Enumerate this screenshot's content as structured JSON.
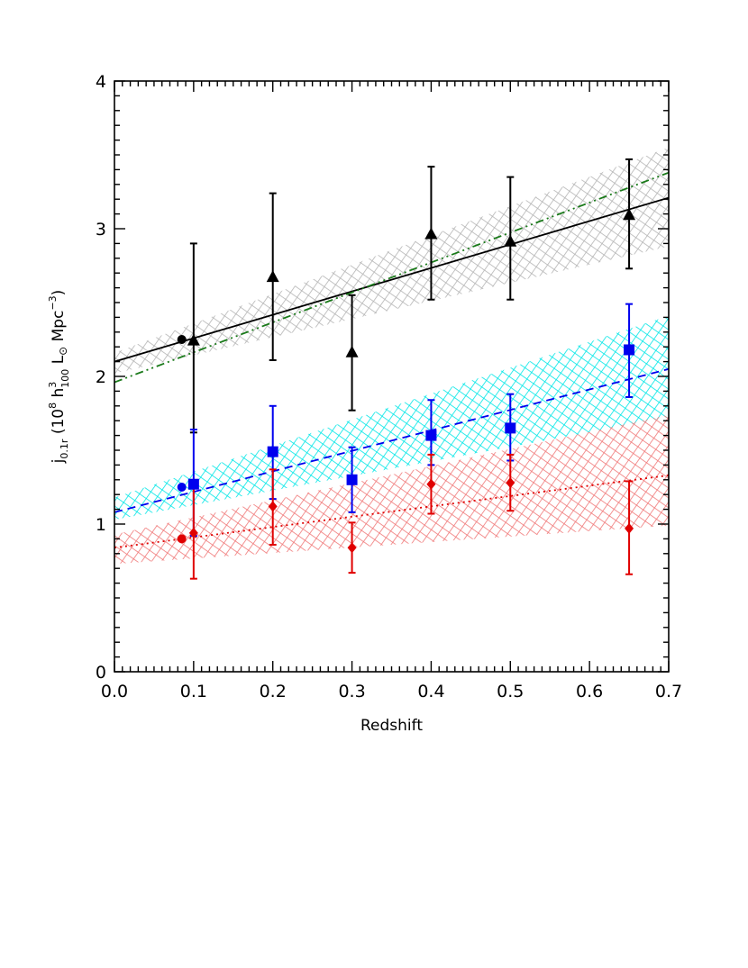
{
  "chart_data": {
    "type": "scatter",
    "title": "",
    "xlabel": "Redshift",
    "ylabel": {
      "prefix": "j",
      "prefix_sub": "0.1r",
      "open": " (10",
      "sup_8": "8",
      "h": " h",
      "h_sup": "3",
      "h_sub": "100",
      "lum": "  L",
      "sun_symbol": "⊙",
      "unit": " Mpc",
      "unit_sup": "−3",
      "close": ")"
    },
    "xlim": [
      0.0,
      0.7
    ],
    "ylim": [
      0,
      4
    ],
    "xticks": [
      0.0,
      0.1,
      0.2,
      0.3,
      0.4,
      0.5,
      0.6,
      0.7
    ],
    "xtick_labels": [
      "0.0",
      "0.1",
      "0.2",
      "0.3",
      "0.4",
      "0.5",
      "0.6",
      "0.7"
    ],
    "yticks": [
      0,
      1,
      2,
      3,
      4
    ],
    "ytick_labels": [
      "0",
      "1",
      "2",
      "3",
      "4"
    ],
    "grid": false,
    "legend": "none",
    "bands": [
      {
        "name": "total",
        "color": "#b4b4b4",
        "x": [
          0.0,
          0.7
        ],
        "low": [
          2.02,
          2.88
        ],
        "high": [
          2.16,
          3.55
        ]
      },
      {
        "name": "blue",
        "color": "#00e6e6",
        "x": [
          0.0,
          0.7
        ],
        "low": [
          1.03,
          1.72
        ],
        "high": [
          1.18,
          2.41
        ]
      },
      {
        "name": "red",
        "color": "#f07878",
        "x": [
          0.0,
          0.7
        ],
        "low": [
          0.73,
          0.99
        ],
        "high": [
          0.93,
          1.74
        ]
      }
    ],
    "fit_lines": [
      {
        "name": "total-fit",
        "color": "#000000",
        "dash": "solid",
        "x": [
          0.0,
          0.7
        ],
        "y": [
          2.1,
          3.21
        ]
      },
      {
        "name": "total-alt-fit",
        "color": "#1a7a1a",
        "dash": "dash-dot-dot",
        "x": [
          0.0,
          0.7
        ],
        "y": [
          1.96,
          3.38
        ]
      },
      {
        "name": "blue-fit",
        "color": "#0000ee",
        "dash": "dashed",
        "x": [
          0.0,
          0.7
        ],
        "y": [
          1.08,
          2.05
        ]
      },
      {
        "name": "red-fit",
        "color": "#e00000",
        "dash": "dotted",
        "x": [
          0.0,
          0.7
        ],
        "y": [
          0.84,
          1.33
        ]
      }
    ],
    "series": [
      {
        "name": "total",
        "color": "#000000",
        "marker": "triangle",
        "x": [
          0.1,
          0.2,
          0.3,
          0.4,
          0.5,
          0.65
        ],
        "y": [
          2.24,
          2.67,
          2.16,
          2.96,
          2.91,
          3.09
        ],
        "err_low": [
          1.62,
          2.11,
          1.77,
          2.52,
          2.52,
          2.73
        ],
        "err_high": [
          2.9,
          3.24,
          2.55,
          3.42,
          3.35,
          3.47
        ]
      },
      {
        "name": "blue",
        "color": "#0000ee",
        "marker": "square",
        "x": [
          0.1,
          0.2,
          0.3,
          0.4,
          0.5,
          0.65
        ],
        "y": [
          1.27,
          1.49,
          1.3,
          1.6,
          1.65,
          2.18
        ],
        "err_low": [
          0.92,
          1.17,
          1.08,
          1.4,
          1.43,
          1.86
        ],
        "err_high": [
          1.64,
          1.8,
          1.52,
          1.84,
          1.88,
          2.49
        ]
      },
      {
        "name": "red",
        "color": "#e00000",
        "marker": "diamond",
        "x": [
          0.1,
          0.2,
          0.3,
          0.4,
          0.5,
          0.65
        ],
        "y": [
          0.94,
          1.12,
          0.84,
          1.27,
          1.28,
          0.97
        ],
        "err_low": [
          0.63,
          0.86,
          0.67,
          1.07,
          1.09,
          0.66
        ],
        "err_high": [
          1.25,
          1.37,
          1.01,
          1.47,
          1.47,
          1.29
        ]
      },
      {
        "name": "total-local",
        "color": "#000000",
        "marker": "circle",
        "x": [
          0.085
        ],
        "y": [
          2.25
        ]
      },
      {
        "name": "blue-local",
        "color": "#0000ee",
        "marker": "circle",
        "x": [
          0.085
        ],
        "y": [
          1.25
        ]
      },
      {
        "name": "red-local",
        "color": "#e00000",
        "marker": "circle",
        "x": [
          0.085
        ],
        "y": [
          0.9
        ]
      }
    ]
  }
}
